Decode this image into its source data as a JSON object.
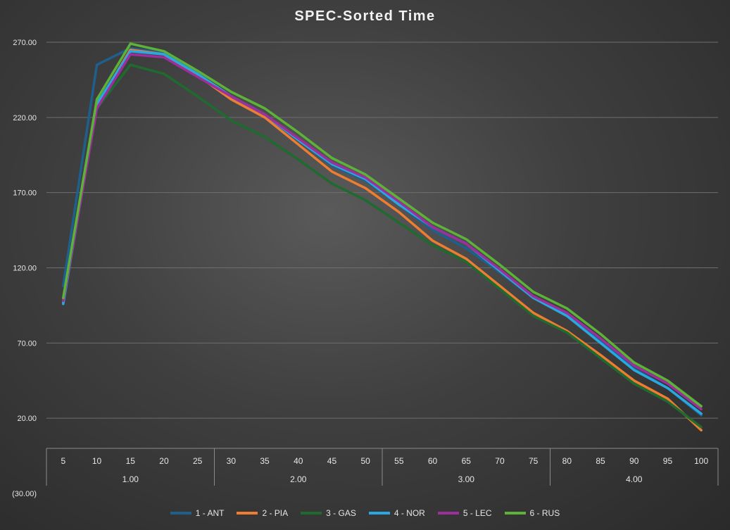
{
  "chart_data": {
    "type": "line",
    "title": "SPEC-Sorted Time",
    "xlabel": "",
    "ylabel": "",
    "ylim": [
      -30,
      270
    ],
    "y_ticks": [
      "270.00",
      "220.00",
      "170.00",
      "120.00",
      "70.00",
      "20.00",
      "(30.00)"
    ],
    "y_tick_values": [
      270,
      220,
      170,
      120,
      70,
      20,
      -30
    ],
    "categories": [
      "5",
      "10",
      "15",
      "20",
      "25",
      "30",
      "35",
      "40",
      "45",
      "50",
      "55",
      "60",
      "65",
      "70",
      "75",
      "80",
      "85",
      "90",
      "95",
      "100"
    ],
    "groups": [
      {
        "label": "1.00",
        "count": 5
      },
      {
        "label": "2.00",
        "count": 5
      },
      {
        "label": "3.00",
        "count": 5
      },
      {
        "label": "4.00",
        "count": 5
      }
    ],
    "series": [
      {
        "name": "1 - ANT",
        "color": "#1f5f8c",
        "values": [
          108,
          255,
          266,
          263,
          248,
          232,
          221,
          205,
          188,
          178,
          162,
          145,
          133,
          117,
          100,
          89,
          72,
          53,
          40,
          22
        ]
      },
      {
        "name": "2 - PIA",
        "color": "#ed7d31",
        "values": [
          97,
          228,
          265,
          262,
          248,
          232,
          220,
          202,
          184,
          173,
          157,
          138,
          126,
          108,
          90,
          78,
          62,
          45,
          33,
          12
        ]
      },
      {
        "name": "3 - GAS",
        "color": "#1f6b2f",
        "values": [
          99,
          226,
          255,
          249,
          234,
          218,
          207,
          192,
          176,
          165,
          150,
          135,
          124,
          106,
          88,
          77,
          60,
          43,
          31,
          14
        ]
      },
      {
        "name": "4 - NOR",
        "color": "#29a8e0",
        "values": [
          96,
          229,
          264,
          262,
          249,
          234,
          222,
          205,
          189,
          179,
          162,
          147,
          136,
          118,
          100,
          88,
          70,
          52,
          40,
          23
        ]
      },
      {
        "name": "5 - LEC",
        "color": "#9b2f9b",
        "values": [
          98,
          226,
          262,
          260,
          247,
          234,
          222,
          206,
          190,
          180,
          164,
          147,
          136,
          119,
          101,
          90,
          73,
          55,
          43,
          26
        ]
      },
      {
        "name": "6 - RUS",
        "color": "#5cb338",
        "values": [
          100,
          232,
          269,
          264,
          251,
          237,
          226,
          210,
          193,
          182,
          166,
          150,
          139,
          122,
          104,
          93,
          76,
          57,
          45,
          28
        ]
      }
    ]
  }
}
